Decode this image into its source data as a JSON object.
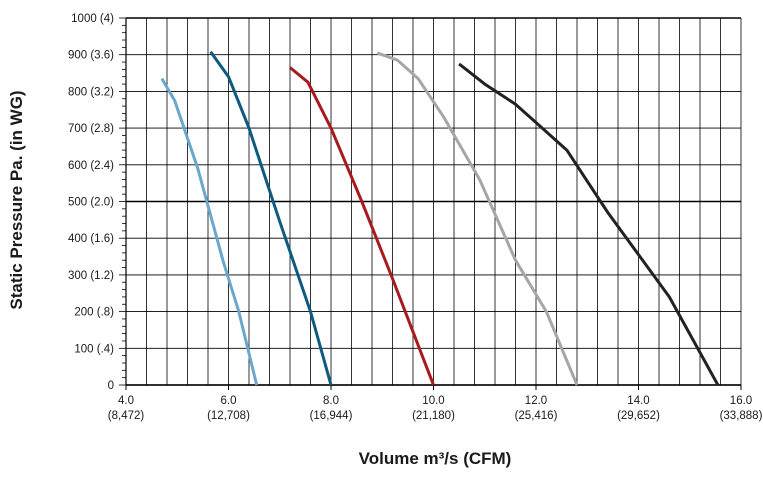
{
  "chart_data": {
    "type": "line",
    "title": "",
    "xlabel": "Volume m³/s (CFM)",
    "ylabel": "Static Pressure Pa. (in WG)",
    "xlim": [
      4.0,
      16.0
    ],
    "ylim": [
      0,
      1000
    ],
    "grid": true,
    "x_ticks": [
      {
        "value": 4.0,
        "label": "4.0",
        "sublabel": "(8,472)"
      },
      {
        "value": 6.0,
        "label": "6.0",
        "sublabel": "(12,708)"
      },
      {
        "value": 8.0,
        "label": "8.0",
        "sublabel": "(16,944)"
      },
      {
        "value": 10.0,
        "label": "10.0",
        "sublabel": "(21,180)"
      },
      {
        "value": 12.0,
        "label": "12.0",
        "sublabel": "(25,416)"
      },
      {
        "value": 14.0,
        "label": "14.0",
        "sublabel": "(29,652)"
      },
      {
        "value": 16.0,
        "label": "16.0",
        "sublabel": "(33,888)"
      }
    ],
    "y_ticks": [
      {
        "value": 0,
        "label": "0"
      },
      {
        "value": 100,
        "label": "100 (.4)"
      },
      {
        "value": 200,
        "label": "200 (.8)"
      },
      {
        "value": 300,
        "label": "300 (1.2)"
      },
      {
        "value": 400,
        "label": "400 (1.6)"
      },
      {
        "value": 500,
        "label": "500 (2.0)"
      },
      {
        "value": 600,
        "label": "600 (2.4)"
      },
      {
        "value": 700,
        "label": "700 (2.8)"
      },
      {
        "value": 800,
        "label": "800 (3.2)"
      },
      {
        "value": 900,
        "label": "900 (3.6)"
      },
      {
        "value": 1000,
        "label": "1000 (4)"
      }
    ],
    "series": [
      {
        "color": "#6aa7cb",
        "points": [
          [
            4.7,
            835
          ],
          [
            4.95,
            775
          ],
          [
            5.4,
            590
          ],
          [
            5.9,
            335
          ],
          [
            6.2,
            200
          ],
          [
            6.55,
            0
          ]
        ]
      },
      {
        "color": "#0e5a80",
        "points": [
          [
            5.65,
            908
          ],
          [
            6.0,
            840
          ],
          [
            6.4,
            700
          ],
          [
            7.0,
            445
          ],
          [
            7.6,
            200
          ],
          [
            8.0,
            0
          ]
        ]
      },
      {
        "color": "#a61b1e",
        "points": [
          [
            7.2,
            865
          ],
          [
            7.55,
            825
          ],
          [
            8.0,
            700
          ],
          [
            8.6,
            500
          ],
          [
            9.2,
            290
          ],
          [
            10.0,
            0
          ]
        ]
      },
      {
        "color": "#a6a6a6",
        "points": [
          [
            8.9,
            905
          ],
          [
            9.3,
            885
          ],
          [
            9.7,
            835
          ],
          [
            10.2,
            730
          ],
          [
            10.9,
            560
          ],
          [
            11.6,
            340
          ],
          [
            12.2,
            200
          ],
          [
            12.8,
            0
          ]
        ]
      },
      {
        "color": "#222222",
        "points": [
          [
            10.5,
            875
          ],
          [
            11.0,
            820
          ],
          [
            11.6,
            765
          ],
          [
            12.6,
            640
          ],
          [
            13.4,
            470
          ],
          [
            14.6,
            240
          ],
          [
            15.55,
            0
          ]
        ]
      }
    ]
  }
}
